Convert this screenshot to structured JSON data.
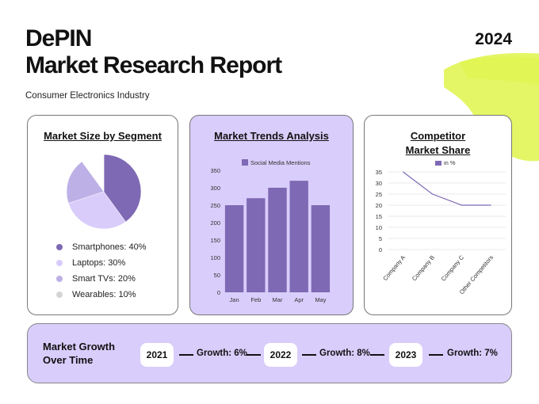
{
  "header": {
    "title_line1": "DePIN",
    "title_line2": "Market Research Report",
    "year": "2024",
    "subtitle": "Consumer Electronics Industry"
  },
  "colors": {
    "accent_purple": "#7e69b4",
    "light_purple_bg": "#d9cdfb",
    "lime_swash": "#dff54a"
  },
  "segment_card": {
    "title": "Market Size by Segment",
    "legend": [
      {
        "label": "Smartphones: 40%",
        "color": "#7e69b4"
      },
      {
        "label": "Laptops: 30%",
        "color": "#d9ccfa"
      },
      {
        "label": "Smart TVs: 20%",
        "color": "#bdb0e6"
      },
      {
        "label": "Wearables: 10%",
        "color": "#d4d4d4"
      }
    ]
  },
  "trends_card": {
    "title": "Market Trends Analysis"
  },
  "competitor_card": {
    "title_line1": "Competitor",
    "title_line2": "Market Share"
  },
  "chart_data": [
    {
      "type": "pie",
      "title": "Market Size by Segment",
      "categories": [
        "Smartphones",
        "Laptops",
        "Smart TVs",
        "Wearables"
      ],
      "values": [
        40,
        30,
        20,
        10
      ],
      "colors": [
        "#7e69b4",
        "#d9ccfa",
        "#bdb0e6",
        "#ffffff"
      ]
    },
    {
      "type": "bar",
      "title": "Market Trends Analysis",
      "categories": [
        "Jan",
        "Feb",
        "Mar",
        "Apr",
        "May"
      ],
      "series": [
        {
          "name": "Social Media Mentions",
          "values": [
            250,
            270,
            300,
            320,
            250
          ]
        }
      ],
      "ylim": [
        0,
        350
      ],
      "yticks": [
        0,
        50,
        100,
        150,
        200,
        250,
        300,
        350
      ],
      "grid": false,
      "legend": "top"
    },
    {
      "type": "line",
      "title": "Competitor Market Share",
      "categories": [
        "Company A",
        "Company B",
        "Company C",
        "Other Competitors"
      ],
      "series": [
        {
          "name": "in %",
          "values": [
            35,
            25,
            20,
            20
          ]
        }
      ],
      "ylim": [
        0,
        35
      ],
      "yticks": [
        0,
        5,
        10,
        15,
        20,
        25,
        30,
        35
      ],
      "grid": true,
      "legend": "top"
    }
  ],
  "growth": {
    "title": "Market Growth Over Time",
    "items": [
      {
        "year": "2021",
        "label": "Growth: 6%"
      },
      {
        "year": "2022",
        "label": "Growth: 8%"
      },
      {
        "year": "2023",
        "label": "Growth: 7%"
      }
    ]
  }
}
